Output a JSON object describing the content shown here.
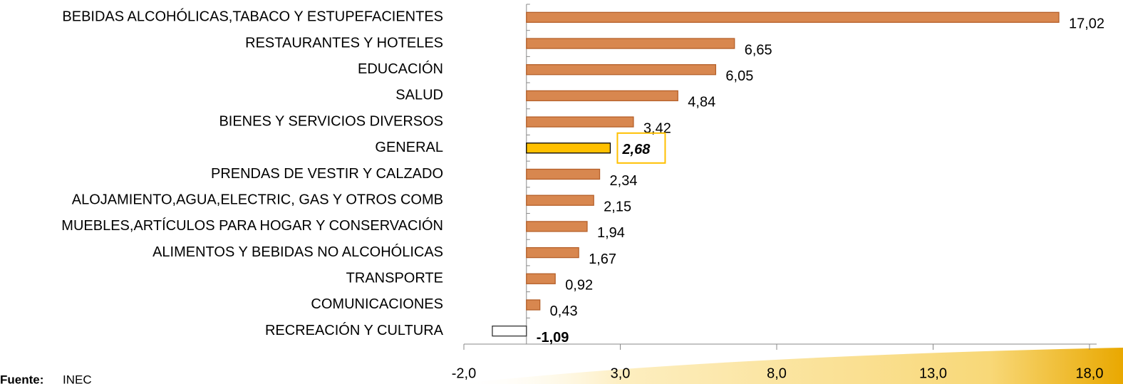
{
  "chart_data": {
    "type": "barh",
    "categories": [
      "BEBIDAS ALCOHÓLICAS,TABACO Y ESTUPEFACIENTES",
      "RESTAURANTES Y HOTELES",
      "EDUCACIÓN",
      "SALUD",
      "BIENES Y SERVICIOS DIVERSOS",
      "GENERAL",
      "PRENDAS DE VESTIR Y CALZADO",
      "ALOJAMIENTO,AGUA,ELECTRIC, GAS Y OTROS COMB",
      "MUEBLES,ARTÍCULOS PARA HOGAR Y CONSERVACIÓN",
      "ALIMENTOS Y BEBIDAS NO ALCOHÓLICAS",
      "TRANSPORTE",
      "COMUNICACIONES",
      "RECREACIÓN Y CULTURA"
    ],
    "values": [
      17.02,
      6.65,
      6.05,
      4.84,
      3.42,
      2.68,
      2.34,
      2.15,
      1.94,
      1.67,
      0.92,
      0.43,
      -1.09
    ],
    "value_labels": [
      "17,02",
      "6,65",
      "6,05",
      "4,84",
      "3,42",
      "2,68",
      "2,34",
      "2,15",
      "1,94",
      "1,67",
      "0,92",
      "0,43",
      "-1,09"
    ],
    "colors": [
      "#d8874f",
      "#d8874f",
      "#d8874f",
      "#d8874f",
      "#d8874f",
      "#ffc000",
      "#d8874f",
      "#d8874f",
      "#d8874f",
      "#d8874f",
      "#d8874f",
      "#d8874f",
      "#ffffff"
    ],
    "xlim": [
      -2,
      18
    ],
    "xticks": [
      {
        "value": -2,
        "label": "-2,0"
      },
      {
        "value": 3,
        "label": "3,0"
      },
      {
        "value": 8,
        "label": "8,0"
      },
      {
        "value": 13,
        "label": "13,0"
      },
      {
        "value": 18,
        "label": "18,0"
      }
    ],
    "source_label": "Fuente:",
    "source": "INEC"
  }
}
